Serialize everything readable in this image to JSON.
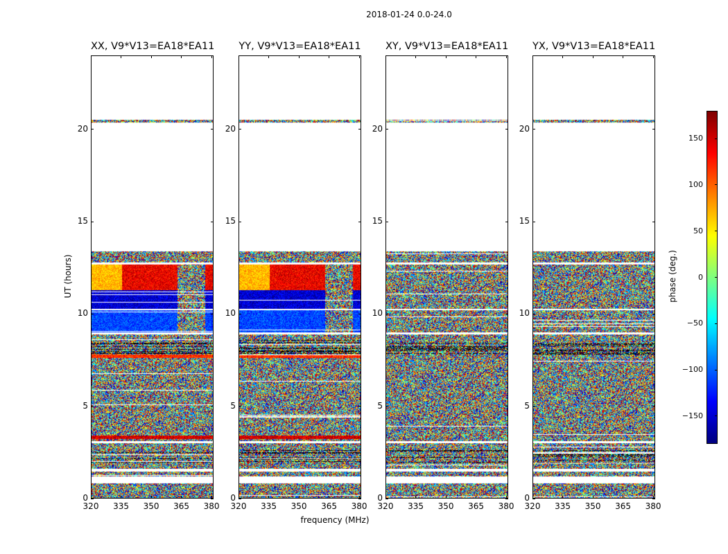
{
  "figure": {
    "suptitle": "2018-01-24 0.0-24.0",
    "xlabel": "frequency (MHz)",
    "ylabel": "UT (hours)"
  },
  "colorbar": {
    "label": "phase (deg.)",
    "range": [
      -180,
      180
    ],
    "ticks": [
      150,
      100,
      50,
      0,
      -50,
      -100,
      -150
    ],
    "tick_labels": [
      "150",
      "100",
      "50",
      "0",
      "−50",
      "−100",
      "−150"
    ],
    "colormap": "jet"
  },
  "chart_data": {
    "type": "heatmap",
    "title": "2018-01-24 0.0-24.0",
    "xlabel": "frequency (MHz)",
    "ylabel": "UT (hours)",
    "xlim": [
      320,
      381
    ],
    "ylim": [
      0,
      24
    ],
    "xticks": [
      320,
      335,
      350,
      365,
      380
    ],
    "yticks": [
      0,
      5,
      10,
      15,
      20
    ],
    "colorbar_label": "phase (deg.)",
    "colorbar_range": [
      -180,
      180
    ],
    "panels": [
      {
        "name": "XX",
        "title": "XX, V9*V13=EA18*EA11",
        "coherent_phase": true
      },
      {
        "name": "YY",
        "title": "YY, V9*V13=EA18*EA11",
        "coherent_phase": true
      },
      {
        "name": "XY",
        "title": "XY, V9*V13=EA18*EA11",
        "coherent_phase": false
      },
      {
        "name": "YX",
        "title": "YX, V9*V13=EA18*EA11",
        "coherent_phase": false
      }
    ],
    "data_ut_ranges": [
      [
        0.0,
        0.8
      ],
      [
        1.2,
        1.45
      ],
      [
        1.6,
        13.4
      ],
      [
        20.4,
        20.55
      ]
    ],
    "flagged_ut_gaps": [
      [
        0.8,
        1.2
      ],
      [
        1.45,
        1.6
      ],
      [
        3.0,
        3.1
      ],
      [
        8.9,
        9.0
      ],
      [
        10.2,
        10.3
      ],
      [
        12.7,
        12.8
      ]
    ],
    "coherent_segments": [
      {
        "ut": [
          9.0,
          10.2
        ],
        "phase_deg": -110
      },
      {
        "ut": [
          10.3,
          11.3
        ],
        "phase_deg": -150
      },
      {
        "ut": [
          11.3,
          12.7
        ],
        "phase_deg": 140
      },
      {
        "ut": [
          7.6,
          7.8
        ],
        "phase_deg": 120
      },
      {
        "ut": [
          3.2,
          3.4
        ],
        "phase_deg": 150
      }
    ]
  }
}
